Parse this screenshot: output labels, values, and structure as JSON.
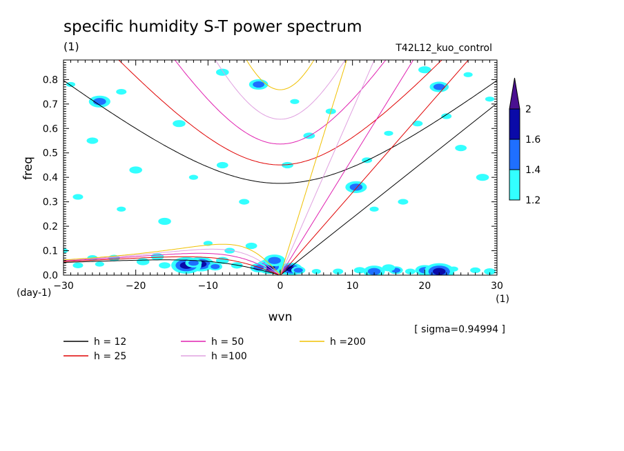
{
  "header": {
    "title": "specific humidity S-T power spectrum",
    "sub_left": "(1)",
    "sub_right": "T42L12_kuo_control"
  },
  "chart_data": {
    "type": "contour",
    "xlabel": "wvn",
    "ylabel": "freq",
    "xunit": "(1)",
    "yunit": "(day-1)",
    "xlim": [
      -30,
      30
    ],
    "ylim": [
      0,
      0.88
    ],
    "xticks": [
      -30,
      -20,
      -10,
      0,
      10,
      20,
      30
    ],
    "yticks": [
      0.0,
      0.1,
      0.2,
      0.3,
      0.4,
      0.5,
      0.6,
      0.7,
      0.8
    ],
    "note": "[ sigma=0.94994 ]",
    "colorbar": {
      "levels": [
        1.2,
        1.4,
        1.6,
        2
      ],
      "colors": [
        "#33ffff",
        "#1f6fff",
        "#0a0aa8",
        "#4a1090"
      ]
    },
    "dispersion_curves": [
      {
        "label": "h = 12",
        "h": 12,
        "color": "#000000"
      },
      {
        "label": "h = 25",
        "h": 25,
        "color": "#e00000"
      },
      {
        "label": "h = 50",
        "h": 50,
        "color": "#e020b0"
      },
      {
        "label": "h =100",
        "h": 100,
        "color": "#e0a0e0"
      },
      {
        "label": "h =200",
        "h": 200,
        "color": "#f0c000"
      }
    ],
    "contour_blobs": [
      {
        "x": 0.5,
        "y": 0.025,
        "level": 3
      },
      {
        "x": 1.5,
        "y": 0.025,
        "level": 3
      },
      {
        "x": -1.5,
        "y": 0.035,
        "level": 3
      },
      {
        "x": -0.8,
        "y": 0.06,
        "level": 2
      },
      {
        "x": 2.5,
        "y": 0.02,
        "level": 2
      },
      {
        "x": -3,
        "y": 0.03,
        "level": 2
      },
      {
        "x": -11,
        "y": 0.045,
        "level": 3
      },
      {
        "x": -13,
        "y": 0.04,
        "level": 3
      },
      {
        "x": -9,
        "y": 0.035,
        "level": 2
      },
      {
        "x": -12,
        "y": 0.05,
        "level": 2
      },
      {
        "x": -16,
        "y": 0.04,
        "level": 1
      },
      {
        "x": -19,
        "y": 0.055,
        "level": 1
      },
      {
        "x": -25,
        "y": 0.045,
        "level": 1
      },
      {
        "x": -28,
        "y": 0.04,
        "level": 1
      },
      {
        "x": -6,
        "y": 0.04,
        "level": 1
      },
      {
        "x": -8,
        "y": 0.06,
        "level": 1
      },
      {
        "x": 5,
        "y": 0.015,
        "level": 1
      },
      {
        "x": 8,
        "y": 0.015,
        "level": 1
      },
      {
        "x": 11,
        "y": 0.02,
        "level": 1
      },
      {
        "x": 13,
        "y": 0.015,
        "level": 2
      },
      {
        "x": 16,
        "y": 0.02,
        "level": 2
      },
      {
        "x": 18,
        "y": 0.015,
        "level": 1
      },
      {
        "x": 20,
        "y": 0.02,
        "level": 2
      },
      {
        "x": 22,
        "y": 0.015,
        "level": 3
      },
      {
        "x": 24,
        "y": 0.025,
        "level": 1
      },
      {
        "x": 27,
        "y": 0.02,
        "level": 1
      },
      {
        "x": 29,
        "y": 0.015,
        "level": 1
      },
      {
        "x": 15,
        "y": 0.03,
        "level": 1
      },
      {
        "x": -30,
        "y": 0.1,
        "level": 1
      },
      {
        "x": -26,
        "y": 0.07,
        "level": 1
      },
      {
        "x": -23,
        "y": 0.07,
        "level": 1
      },
      {
        "x": -17,
        "y": 0.075,
        "level": 1
      },
      {
        "x": -10,
        "y": 0.13,
        "level": 1
      },
      {
        "x": -7,
        "y": 0.1,
        "level": 1
      },
      {
        "x": -4,
        "y": 0.12,
        "level": 1
      },
      {
        "x": -25,
        "y": 0.71,
        "level": 2
      },
      {
        "x": -29,
        "y": 0.78,
        "level": 1
      },
      {
        "x": -22,
        "y": 0.75,
        "level": 1
      },
      {
        "x": -26,
        "y": 0.55,
        "level": 1
      },
      {
        "x": -20,
        "y": 0.43,
        "level": 1
      },
      {
        "x": -12,
        "y": 0.4,
        "level": 1
      },
      {
        "x": -5,
        "y": 0.3,
        "level": 1
      },
      {
        "x": -8,
        "y": 0.45,
        "level": 1
      },
      {
        "x": -16,
        "y": 0.22,
        "level": 1
      },
      {
        "x": -22,
        "y": 0.27,
        "level": 1
      },
      {
        "x": -28,
        "y": 0.32,
        "level": 1
      },
      {
        "x": -3,
        "y": 0.78,
        "level": 2
      },
      {
        "x": -8,
        "y": 0.83,
        "level": 1
      },
      {
        "x": 2,
        "y": 0.71,
        "level": 1
      },
      {
        "x": 7,
        "y": 0.67,
        "level": 1
      },
      {
        "x": 1,
        "y": 0.45,
        "level": 1
      },
      {
        "x": 10.5,
        "y": 0.36,
        "level": 2
      },
      {
        "x": 13,
        "y": 0.27,
        "level": 1
      },
      {
        "x": 17,
        "y": 0.3,
        "level": 1
      },
      {
        "x": 22,
        "y": 0.77,
        "level": 2
      },
      {
        "x": 20,
        "y": 0.84,
        "level": 1
      },
      {
        "x": 26,
        "y": 0.82,
        "level": 1
      },
      {
        "x": 19,
        "y": 0.62,
        "level": 1
      },
      {
        "x": 25,
        "y": 0.52,
        "level": 1
      },
      {
        "x": 28,
        "y": 0.4,
        "level": 1
      },
      {
        "x": 15,
        "y": 0.58,
        "level": 1
      },
      {
        "x": 12,
        "y": 0.47,
        "level": 1
      },
      {
        "x": 4,
        "y": 0.57,
        "level": 1
      },
      {
        "x": -14,
        "y": 0.62,
        "level": 1
      },
      {
        "x": 29,
        "y": 0.72,
        "level": 1
      },
      {
        "x": 23,
        "y": 0.65,
        "level": 1
      }
    ]
  },
  "legend": {
    "columns": [
      [
        {
          "label": "h = 12",
          "color": "#000000"
        },
        {
          "label": "h = 25",
          "color": "#e00000"
        }
      ],
      [
        {
          "label": "h = 50",
          "color": "#e020b0"
        },
        {
          "label": "h =100",
          "color": "#e0a0e0"
        }
      ],
      [
        {
          "label": "h =200",
          "color": "#f0c000"
        }
      ]
    ]
  }
}
